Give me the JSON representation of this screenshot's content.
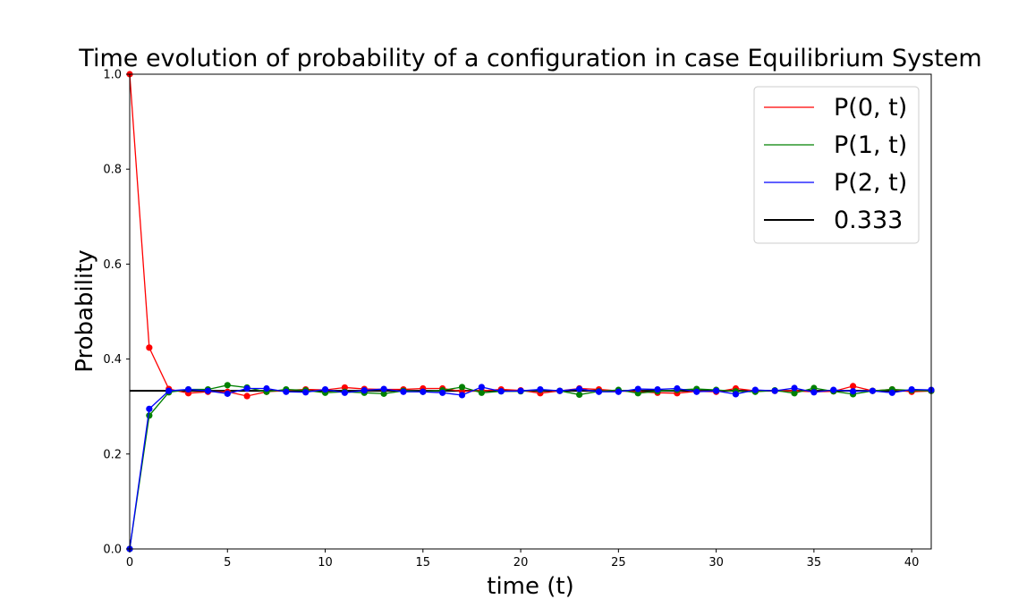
{
  "chart_data": {
    "type": "line",
    "title": "Time evolution of probability of a configuration in case Equilibrium System",
    "xlabel": "time (t)",
    "ylabel": "Probability",
    "xlim": [
      0,
      41
    ],
    "ylim": [
      0,
      1
    ],
    "xticks": [
      0,
      5,
      10,
      15,
      20,
      25,
      30,
      35,
      40
    ],
    "yticks": [
      0.0,
      0.2,
      0.4,
      0.6,
      0.8,
      1.0
    ],
    "xtick_labels": [
      "0",
      "5",
      "10",
      "15",
      "20",
      "25",
      "30",
      "35",
      "40"
    ],
    "ytick_labels": [
      "0.0",
      "0.2",
      "0.4",
      "0.6",
      "0.8",
      "1.0"
    ],
    "grid": false,
    "legend_position": "top-right",
    "x": [
      0,
      1,
      2,
      3,
      4,
      5,
      6,
      7,
      8,
      9,
      10,
      11,
      12,
      13,
      14,
      15,
      16,
      17,
      18,
      19,
      20,
      21,
      22,
      23,
      24,
      25,
      26,
      27,
      28,
      29,
      30,
      31,
      32,
      33,
      34,
      35,
      36,
      37,
      38,
      39,
      40,
      41
    ],
    "series": [
      {
        "name": "P(0, t)",
        "color": "#ff0000",
        "values": [
          1.0,
          0.424,
          0.337,
          0.328,
          0.331,
          0.331,
          0.322,
          0.331,
          0.334,
          0.336,
          0.335,
          0.34,
          0.337,
          0.336,
          0.336,
          0.338,
          0.338,
          0.332,
          0.333,
          0.336,
          0.334,
          0.328,
          0.333,
          0.338,
          0.336,
          0.333,
          0.331,
          0.329,
          0.328,
          0.332,
          0.331,
          0.338,
          0.333,
          0.333,
          0.333,
          0.331,
          0.332,
          0.343,
          0.333,
          0.336,
          0.331,
          0.333
        ]
      },
      {
        "name": "P(1, t)",
        "color": "#008000",
        "values": [
          0.0,
          0.281,
          0.33,
          0.336,
          0.336,
          0.345,
          0.34,
          0.331,
          0.336,
          0.334,
          0.329,
          0.331,
          0.329,
          0.327,
          0.333,
          0.331,
          0.334,
          0.341,
          0.329,
          0.332,
          0.332,
          0.335,
          0.333,
          0.325,
          0.332,
          0.335,
          0.328,
          0.332,
          0.335,
          0.337,
          0.335,
          0.332,
          0.331,
          0.334,
          0.328,
          0.339,
          0.332,
          0.326,
          0.333,
          0.336,
          0.334,
          0.333
        ]
      },
      {
        "name": "P(2, t)",
        "color": "#0000ff",
        "values": [
          0.0,
          0.295,
          0.333,
          0.336,
          0.333,
          0.327,
          0.338,
          0.338,
          0.331,
          0.33,
          0.336,
          0.329,
          0.334,
          0.337,
          0.331,
          0.331,
          0.329,
          0.324,
          0.341,
          0.332,
          0.333,
          0.336,
          0.333,
          0.337,
          0.331,
          0.331,
          0.337,
          0.336,
          0.338,
          0.331,
          0.333,
          0.326,
          0.335,
          0.333,
          0.339,
          0.33,
          0.335,
          0.332,
          0.333,
          0.329,
          0.336,
          0.335
        ]
      }
    ],
    "reference_line": {
      "name": "0.333",
      "value": 0.333,
      "color": "#000000"
    }
  }
}
